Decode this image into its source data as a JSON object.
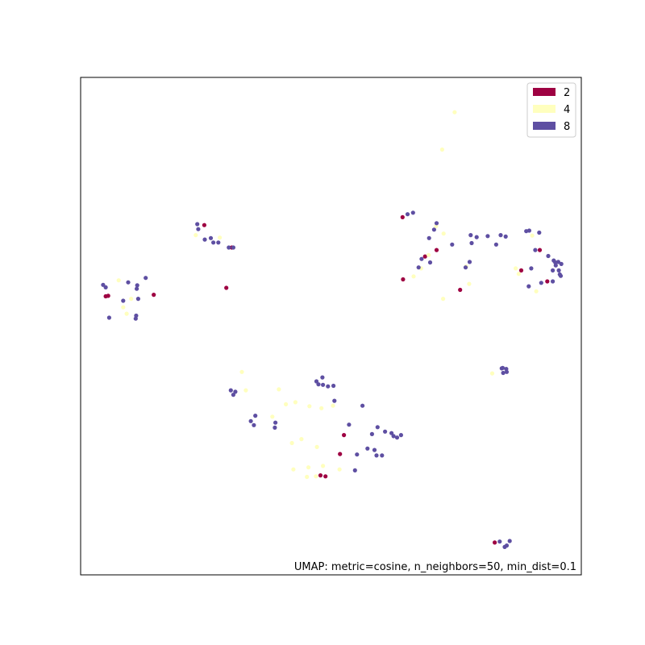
{
  "chart_data": {
    "type": "scatter",
    "title": "",
    "xlabel": "",
    "ylabel": "",
    "xlim": [
      0,
      1
    ],
    "ylim": [
      0,
      1
    ],
    "grid": false,
    "ticks": "hidden",
    "legend": {
      "placement": "top-right",
      "entries": [
        {
          "label": "2",
          "color": "#9e0142"
        },
        {
          "label": "4",
          "color": "#ffffbe"
        },
        {
          "label": "8",
          "color": "#5e4fa2"
        }
      ]
    },
    "annotation": "UMAP: metric=cosine, n_neighbors=50, min_dist=0.1",
    "series": [
      {
        "name": "2",
        "color": "#9e0142",
        "x": [
          0.247,
          0.302,
          0.291,
          0.055,
          0.05,
          0.146,
          0.643,
          0.711,
          0.688,
          0.644,
          0.758,
          0.917,
          0.88,
          0.932,
          0.526,
          0.518,
          0.479,
          0.489,
          0.827
        ],
        "y": [
          0.703,
          0.658,
          0.577,
          0.561,
          0.56,
          0.563,
          0.719,
          0.653,
          0.64,
          0.594,
          0.573,
          0.653,
          0.612,
          0.59,
          0.281,
          0.243,
          0.2,
          0.198,
          0.065
        ]
      },
      {
        "name": "4",
        "color": "#ffffbe",
        "x": [
          0.076,
          0.101,
          0.085,
          0.092,
          0.23,
          0.278,
          0.71,
          0.725,
          0.695,
          0.68,
          0.665,
          0.77,
          0.776,
          0.724,
          0.902,
          0.875,
          0.869,
          0.91,
          0.822,
          0.322,
          0.33,
          0.396,
          0.41,
          0.383,
          0.429,
          0.457,
          0.481,
          0.472,
          0.504,
          0.441,
          0.422,
          0.484,
          0.455,
          0.517,
          0.47,
          0.452,
          0.425,
          0.747,
          0.722
        ],
        "y": [
          0.592,
          0.555,
          0.538,
          0.525,
          0.683,
          0.678,
          0.701,
          0.686,
          0.643,
          0.616,
          0.6,
          0.62,
          0.585,
          0.555,
          0.682,
          0.605,
          0.616,
          0.57,
          0.405,
          0.408,
          0.371,
          0.373,
          0.343,
          0.318,
          0.347,
          0.339,
          0.335,
          0.257,
          0.34,
          0.273,
          0.265,
          0.219,
          0.216,
          0.212,
          0.198,
          0.197,
          0.212,
          0.93,
          0.855
        ]
      },
      {
        "name": "8",
        "color": "#5e4fa2",
        "x": [
          0.233,
          0.235,
          0.26,
          0.265,
          0.275,
          0.248,
          0.296,
          0.305,
          0.045,
          0.05,
          0.085,
          0.115,
          0.095,
          0.113,
          0.13,
          0.112,
          0.11,
          0.111,
          0.057,
          0.653,
          0.664,
          0.711,
          0.706,
          0.696,
          0.742,
          0.681,
          0.698,
          0.675,
          0.779,
          0.791,
          0.781,
          0.777,
          0.769,
          0.813,
          0.839,
          0.849,
          0.83,
          0.896,
          0.89,
          0.916,
          0.908,
          0.954,
          0.948,
          0.943,
          0.949,
          0.945,
          0.934,
          0.9,
          0.92,
          0.895,
          0.943,
          0.957,
          0.955,
          0.96,
          0.959,
          0.841,
          0.844,
          0.85,
          0.851,
          0.843,
          0.3,
          0.309,
          0.305,
          0.349,
          0.34,
          0.346,
          0.388,
          0.389,
          0.483,
          0.471,
          0.475,
          0.484,
          0.494,
          0.505,
          0.507,
          0.563,
          0.593,
          0.608,
          0.582,
          0.621,
          0.64,
          0.632,
          0.625,
          0.536,
          0.573,
          0.552,
          0.587,
          0.591,
          0.602,
          0.548,
          0.851,
          0.847,
          0.857,
          0.837
        ],
        "y": [
          0.705,
          0.695,
          0.677,
          0.668,
          0.668,
          0.674,
          0.658,
          0.658,
          0.583,
          0.578,
          0.551,
          0.555,
          0.588,
          0.582,
          0.597,
          0.575,
          0.515,
          0.521,
          0.517,
          0.725,
          0.728,
          0.707,
          0.694,
          0.677,
          0.664,
          0.635,
          0.628,
          0.618,
          0.683,
          0.679,
          0.667,
          0.629,
          0.618,
          0.681,
          0.683,
          0.68,
          0.664,
          0.692,
          0.691,
          0.688,
          0.653,
          0.629,
          0.628,
          0.612,
          0.622,
          0.632,
          0.641,
          0.616,
          0.587,
          0.58,
          0.59,
          0.604,
          0.612,
          0.625,
          0.601,
          0.415,
          0.406,
          0.414,
          0.408,
          0.416,
          0.371,
          0.368,
          0.362,
          0.32,
          0.309,
          0.301,
          0.296,
          0.306,
          0.397,
          0.389,
          0.383,
          0.382,
          0.379,
          0.38,
          0.35,
          0.34,
          0.297,
          0.288,
          0.283,
          0.285,
          0.281,
          0.276,
          0.279,
          0.302,
          0.254,
          0.242,
          0.251,
          0.24,
          0.24,
          0.21,
          0.059,
          0.056,
          0.068,
          0.067
        ]
      }
    ]
  }
}
